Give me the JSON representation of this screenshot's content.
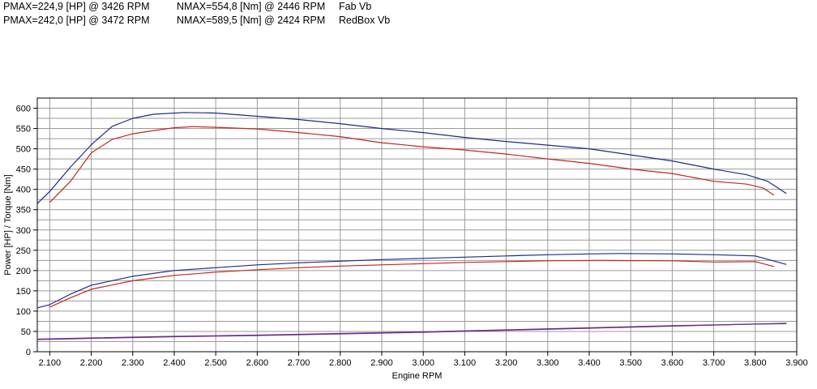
{
  "legend": [
    {
      "pmax": "PMAX=224,9 [HP] @ 3426 RPM",
      "nmax": "NMAX=554,8 [Nm] @ 2446 RPM",
      "name": "Fab Vb"
    },
    {
      "pmax": "PMAX=242,0 [HP] @ 3472 RPM",
      "nmax": "NMAX=589,5 [Nm] @ 2424 RPM",
      "name": "RedBox Vb"
    }
  ],
  "colors": {
    "fab": "#c0281e",
    "redbox": "#1e2a8c",
    "boost": "#6a2c8a",
    "grid": "#9a9a9a",
    "frame": "#000000"
  },
  "chart_data": {
    "type": "line",
    "xlabel": "Engine RPM",
    "ylabel": "Power [HP] / Torque [Nm]",
    "xlim": [
      2070,
      3900
    ],
    "ylim": [
      0,
      625
    ],
    "x_ticks": [
      {
        "v": 2100,
        "label": "2.100"
      },
      {
        "v": 2200,
        "label": "2.200"
      },
      {
        "v": 2300,
        "label": "2.300"
      },
      {
        "v": 2400,
        "label": "2.400"
      },
      {
        "v": 2500,
        "label": "2.500"
      },
      {
        "v": 2600,
        "label": "2.600"
      },
      {
        "v": 2700,
        "label": "2.700"
      },
      {
        "v": 2800,
        "label": "2.800"
      },
      {
        "v": 2900,
        "label": "2.900"
      },
      {
        "v": 3000,
        "label": "3.000"
      },
      {
        "v": 3100,
        "label": "3.100"
      },
      {
        "v": 3200,
        "label": "3.200"
      },
      {
        "v": 3300,
        "label": "3.300"
      },
      {
        "v": 3400,
        "label": "3.400"
      },
      {
        "v": 3500,
        "label": "3.500"
      },
      {
        "v": 3600,
        "label": "3.600"
      },
      {
        "v": 3700,
        "label": "3.700"
      },
      {
        "v": 3800,
        "label": "3.800"
      },
      {
        "v": 3900,
        "label": "3.900"
      }
    ],
    "y_ticks": [
      0,
      25,
      50,
      75,
      100,
      125,
      150,
      175,
      200,
      225,
      250,
      275,
      300,
      325,
      350,
      375,
      400,
      425,
      450,
      475,
      500,
      525,
      550,
      575,
      600
    ],
    "y_tick_labels": [
      "0",
      "50",
      "100",
      "150",
      "200",
      "250",
      "300",
      "350",
      "400",
      "450",
      "500",
      "550",
      "600"
    ],
    "grid": true,
    "series": [
      {
        "name": "Fab Vb",
        "color_key": "fab",
        "kind": "torque",
        "points": [
          [
            2100,
            368
          ],
          [
            2150,
            420
          ],
          [
            2200,
            490
          ],
          [
            2250,
            523
          ],
          [
            2300,
            537
          ],
          [
            2350,
            545
          ],
          [
            2400,
            552
          ],
          [
            2446,
            554.8
          ],
          [
            2500,
            553
          ],
          [
            2600,
            549
          ],
          [
            2700,
            540
          ],
          [
            2800,
            530
          ],
          [
            2900,
            515
          ],
          [
            3000,
            505
          ],
          [
            3100,
            497
          ],
          [
            3200,
            487
          ],
          [
            3300,
            475
          ],
          [
            3400,
            464
          ],
          [
            3500,
            450
          ],
          [
            3600,
            439
          ],
          [
            3700,
            420
          ],
          [
            3780,
            413
          ],
          [
            3820,
            403
          ],
          [
            3845,
            386
          ]
        ]
      },
      {
        "name": "RedBox Vb",
        "color_key": "redbox",
        "kind": "torque",
        "points": [
          [
            2070,
            365
          ],
          [
            2100,
            395
          ],
          [
            2150,
            455
          ],
          [
            2200,
            510
          ],
          [
            2250,
            555
          ],
          [
            2300,
            575
          ],
          [
            2350,
            585
          ],
          [
            2424,
            589.5
          ],
          [
            2500,
            588
          ],
          [
            2600,
            580
          ],
          [
            2700,
            572
          ],
          [
            2800,
            562
          ],
          [
            2900,
            550
          ],
          [
            3000,
            540
          ],
          [
            3100,
            528
          ],
          [
            3200,
            518
          ],
          [
            3300,
            509
          ],
          [
            3400,
            500
          ],
          [
            3500,
            485
          ],
          [
            3600,
            470
          ],
          [
            3700,
            450
          ],
          [
            3780,
            436
          ],
          [
            3830,
            420
          ],
          [
            3875,
            390
          ]
        ]
      },
      {
        "name": "Fab Vb",
        "color_key": "fab",
        "kind": "power",
        "points": [
          [
            2100,
            110
          ],
          [
            2150,
            133
          ],
          [
            2200,
            154
          ],
          [
            2300,
            175
          ],
          [
            2400,
            188
          ],
          [
            2500,
            196
          ],
          [
            2600,
            202
          ],
          [
            2700,
            207
          ],
          [
            2800,
            211
          ],
          [
            2900,
            214
          ],
          [
            3000,
            217
          ],
          [
            3100,
            220
          ],
          [
            3200,
            222
          ],
          [
            3300,
            224
          ],
          [
            3426,
            224.9
          ],
          [
            3500,
            224.5
          ],
          [
            3600,
            224
          ],
          [
            3700,
            221
          ],
          [
            3800,
            222
          ],
          [
            3845,
            210
          ]
        ]
      },
      {
        "name": "RedBox Vb",
        "color_key": "redbox",
        "kind": "power",
        "points": [
          [
            2070,
            108
          ],
          [
            2100,
            116
          ],
          [
            2150,
            142
          ],
          [
            2200,
            164
          ],
          [
            2300,
            186
          ],
          [
            2400,
            200
          ],
          [
            2500,
            207
          ],
          [
            2600,
            214
          ],
          [
            2700,
            219
          ],
          [
            2800,
            223
          ],
          [
            2900,
            227
          ],
          [
            3000,
            230
          ],
          [
            3100,
            233
          ],
          [
            3200,
            236
          ],
          [
            3300,
            239
          ],
          [
            3400,
            241
          ],
          [
            3472,
            242
          ],
          [
            3600,
            241
          ],
          [
            3700,
            239
          ],
          [
            3800,
            236
          ],
          [
            3875,
            215
          ]
        ]
      },
      {
        "name": "Fab Vb",
        "color_key": "fab",
        "kind": "boost",
        "points": [
          [
            2070,
            30
          ],
          [
            2200,
            33
          ],
          [
            2400,
            37
          ],
          [
            2600,
            40
          ],
          [
            2800,
            44
          ],
          [
            3000,
            48
          ],
          [
            3200,
            53
          ],
          [
            3400,
            58
          ],
          [
            3600,
            63
          ],
          [
            3800,
            68
          ],
          [
            3875,
            69
          ]
        ]
      },
      {
        "name": "RedBox Vb",
        "color_key": "redbox",
        "kind": "boost",
        "points": [
          [
            2070,
            31
          ],
          [
            2200,
            34
          ],
          [
            2400,
            38
          ],
          [
            2600,
            41
          ],
          [
            2800,
            45
          ],
          [
            3000,
            49
          ],
          [
            3200,
            54
          ],
          [
            3400,
            59
          ],
          [
            3600,
            64
          ],
          [
            3800,
            68
          ],
          [
            3875,
            70
          ]
        ]
      }
    ]
  }
}
